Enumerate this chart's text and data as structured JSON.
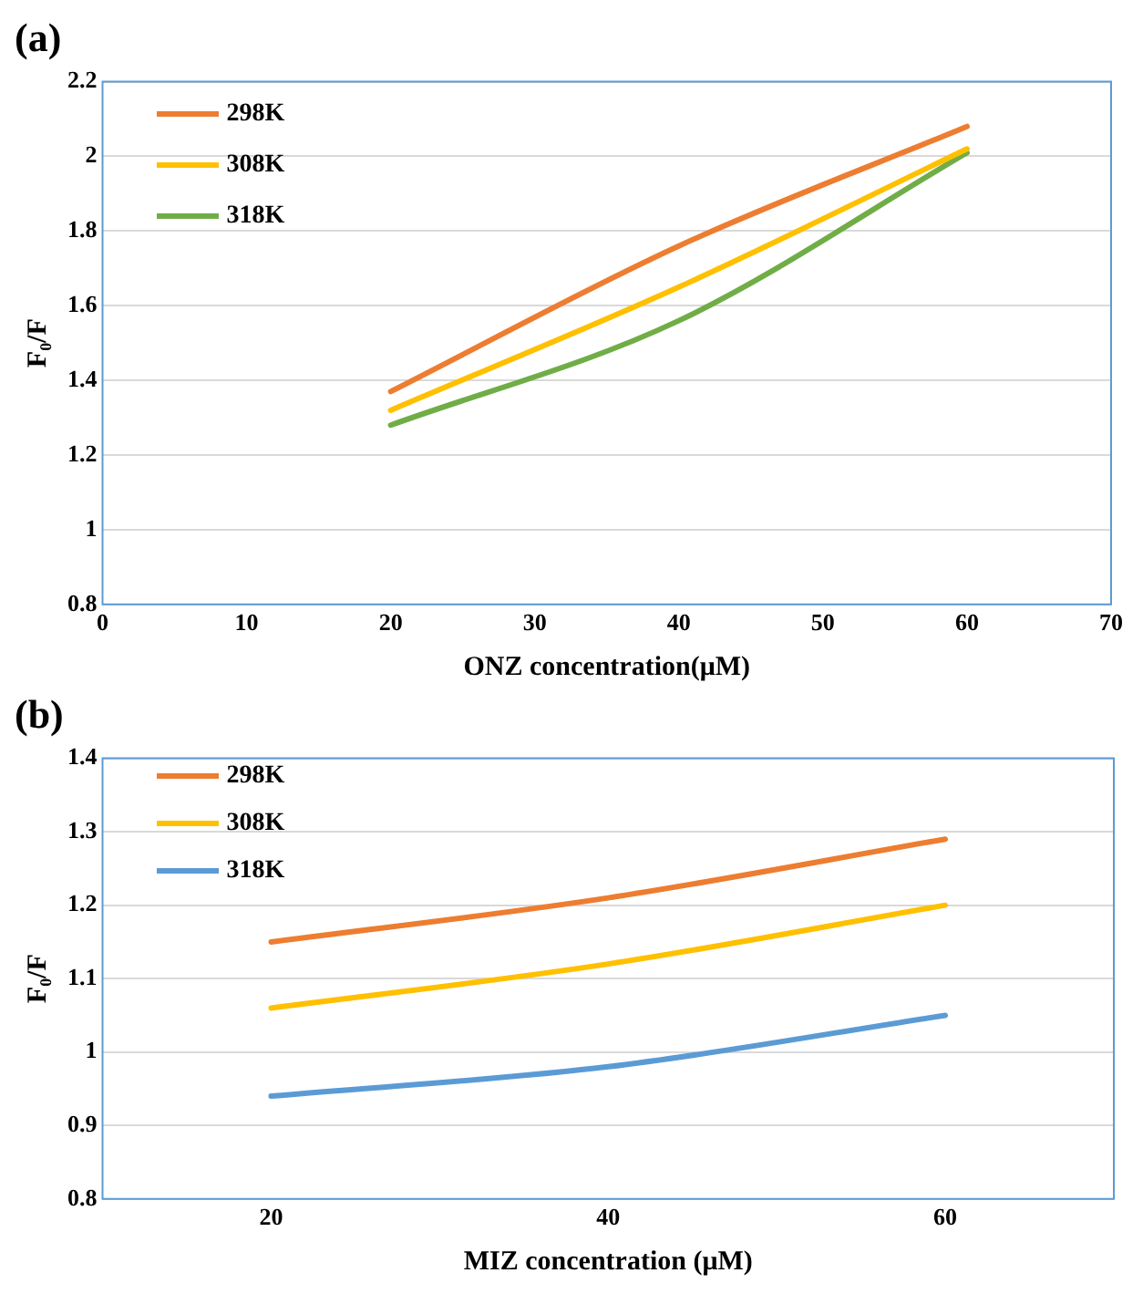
{
  "chart_data": [
    {
      "type": "line",
      "title": "(a)",
      "xlabel": "ONZ concentration(μM)",
      "ylabel": "F₀/F",
      "x": [
        20,
        40,
        60
      ],
      "xlim": [
        0,
        70
      ],
      "xticks": [
        0,
        10,
        20,
        30,
        40,
        50,
        60,
        70
      ],
      "ylim": [
        0.8,
        2.2
      ],
      "yticks": [
        0.8,
        1,
        1.2,
        1.4,
        1.6,
        1.8,
        2,
        2.2
      ],
      "grid": "y",
      "legend": "top left",
      "marker": "none",
      "line_style": "solid",
      "series": [
        {
          "name": "298K",
          "color": "#ed7d31",
          "values": [
            1.37,
            1.76,
            2.08
          ]
        },
        {
          "name": "308K",
          "color": "#ffc000",
          "values": [
            1.32,
            1.65,
            2.02
          ]
        },
        {
          "name": "318K",
          "color": "#70ad47",
          "values": [
            1.28,
            1.56,
            2.01
          ]
        }
      ]
    },
    {
      "type": "line",
      "title": "(b)",
      "xlabel": "MIZ concentration (μM)",
      "ylabel": "F₀/F",
      "categories": [
        "20",
        "40",
        "60"
      ],
      "ylim": [
        0.8,
        1.4
      ],
      "yticks": [
        0.8,
        0.9,
        1,
        1.1,
        1.2,
        1.3,
        1.4
      ],
      "grid": "y",
      "legend": "top left",
      "marker": "none",
      "line_style": "solid",
      "series": [
        {
          "name": "298K",
          "color": "#ed7d31",
          "values": [
            1.15,
            1.21,
            1.29
          ]
        },
        {
          "name": "308K",
          "color": "#ffc000",
          "values": [
            1.06,
            1.12,
            1.2
          ]
        },
        {
          "name": "318K",
          "color": "#5b9bd5",
          "values": [
            0.94,
            0.98,
            1.05
          ]
        }
      ]
    }
  ]
}
